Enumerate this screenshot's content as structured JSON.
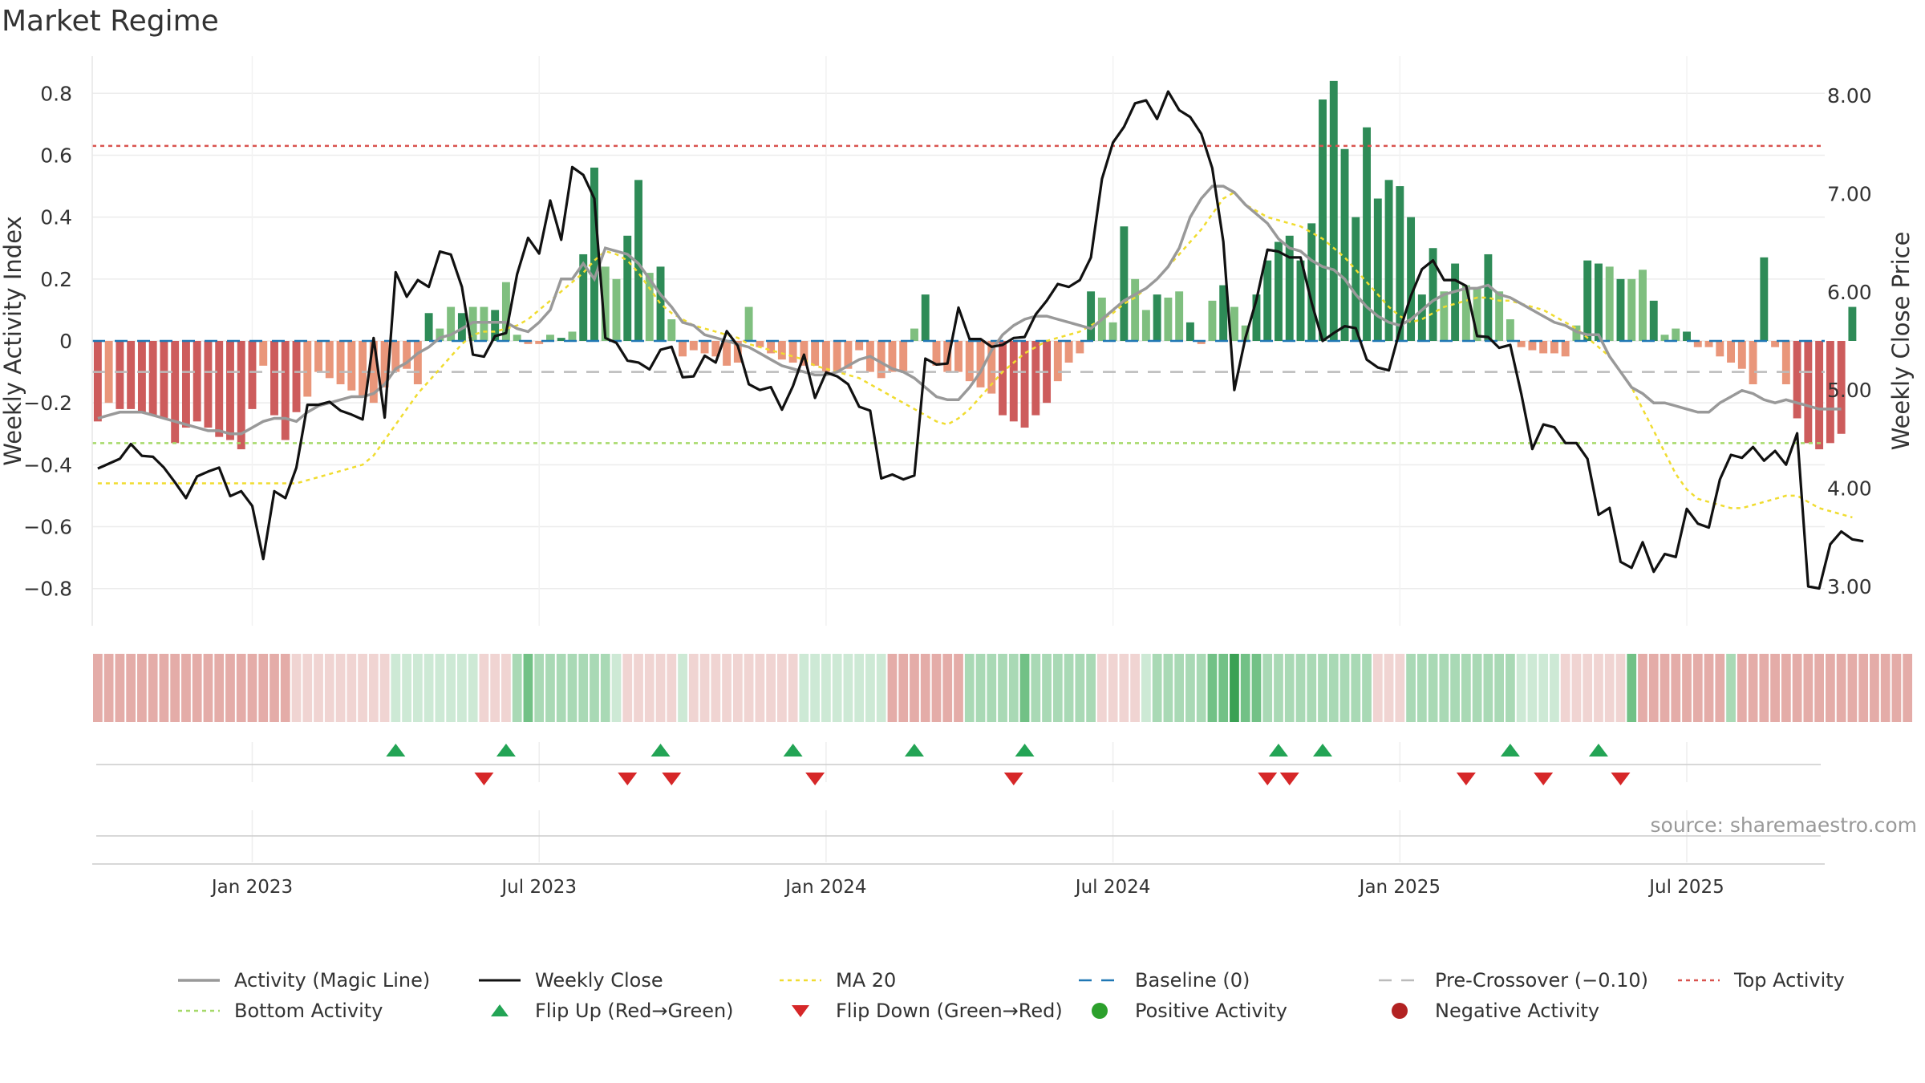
{
  "title": "Market Regime",
  "source": "source: sharemaestro.com",
  "chart_data": {
    "type": "bar",
    "y_left_label": "Weekly Activity Index",
    "y_right_label": "Weekly Close Price",
    "y_left_range": [
      -0.92,
      0.92
    ],
    "y_right_range": [
      2.6,
      8.4
    ],
    "y_left_ticks": [
      "0.8",
      "0.6",
      "0.4",
      "0.2",
      "0",
      "−0.2",
      "−0.4",
      "−0.6",
      "−0.8"
    ],
    "y_left_tick_values": [
      0.8,
      0.6,
      0.4,
      0.2,
      0,
      -0.2,
      -0.4,
      -0.6,
      -0.8
    ],
    "y_right_ticks": [
      "8.00",
      "7.00",
      "6.00",
      "5.00",
      "4.00",
      "3.00"
    ],
    "y_right_tick_values": [
      8,
      7,
      6,
      5,
      4,
      3
    ],
    "x_ticks": [
      "Jan 2023",
      "Jul 2023",
      "Jan 2024",
      "Jul 2024",
      "Jan 2025",
      "Jul 2025"
    ],
    "x_tick_weeks": [
      14,
      40,
      66,
      92,
      118,
      144
    ],
    "weeks": 157,
    "top_activity": 0.63,
    "bottom_activity": -0.33,
    "baseline": 0,
    "pre_crossover": -0.1,
    "activity": [
      -0.26,
      -0.2,
      -0.22,
      -0.22,
      -0.23,
      -0.24,
      -0.25,
      -0.33,
      -0.28,
      -0.26,
      -0.28,
      -0.31,
      -0.32,
      -0.35,
      -0.22,
      -0.08,
      -0.24,
      -0.32,
      -0.23,
      -0.18,
      -0.1,
      -0.12,
      -0.14,
      -0.16,
      -0.18,
      -0.2,
      -0.15,
      -0.1,
      -0.09,
      -0.14,
      0.09,
      0.04,
      0.11,
      0.09,
      0.11,
      0.11,
      0.1,
      0.19,
      0.02,
      -0.01,
      -0.01,
      0.02,
      0.01,
      0.03,
      0.28,
      0.56,
      0.24,
      0.2,
      0.34,
      0.52,
      0.22,
      0.24,
      0.07,
      -0.05,
      -0.03,
      -0.04,
      -0.05,
      -0.08,
      -0.07,
      0.11,
      -0.02,
      -0.04,
      -0.06,
      -0.07,
      -0.08,
      -0.08,
      -0.1,
      -0.1,
      -0.09,
      -0.03,
      -0.1,
      -0.12,
      -0.1,
      -0.1,
      0.04,
      0.15,
      -0.08,
      -0.1,
      -0.1,
      -0.13,
      -0.15,
      -0.17,
      -0.24,
      -0.26,
      -0.28,
      -0.24,
      -0.2,
      -0.13,
      -0.07,
      -0.04,
      0.16,
      0.14,
      0.06,
      0.37,
      0.2,
      0.1,
      0.15,
      0.14,
      0.16,
      0.06,
      -0.01,
      0.13,
      0.18,
      0.11,
      0.05,
      0.15,
      0.26,
      0.32,
      0.34,
      0.26,
      0.38,
      0.78,
      0.84,
      0.62,
      0.4,
      0.69,
      0.46,
      0.52,
      0.5,
      0.4,
      0.15,
      0.3,
      0.16,
      0.25,
      0.18,
      0.17,
      0.28,
      0.16,
      0.07,
      -0.02,
      -0.03,
      -0.04,
      -0.04,
      -0.05,
      0.05,
      0.26,
      0.25,
      0.24,
      0.2,
      0.2,
      0.23,
      0.13,
      0.02,
      0.04,
      0.03,
      -0.02,
      -0.02,
      -0.05,
      -0.07,
      -0.09,
      -0.14,
      0.27,
      -0.02,
      -0.14,
      -0.25,
      -0.33,
      -0.35,
      -0.33,
      -0.3,
      0.11
    ],
    "magic_line": [
      -0.25,
      -0.24,
      -0.23,
      -0.23,
      -0.23,
      -0.24,
      -0.25,
      -0.26,
      -0.27,
      -0.28,
      -0.29,
      -0.29,
      -0.3,
      -0.3,
      -0.28,
      -0.26,
      -0.25,
      -0.25,
      -0.26,
      -0.23,
      -0.21,
      -0.2,
      -0.19,
      -0.18,
      -0.18,
      -0.17,
      -0.14,
      -0.09,
      -0.07,
      -0.04,
      -0.02,
      0.01,
      0.02,
      0.04,
      0.06,
      0.06,
      0.06,
      0.06,
      0.04,
      0.03,
      0.06,
      0.1,
      0.2,
      0.2,
      0.25,
      0.2,
      0.3,
      0.29,
      0.28,
      0.25,
      0.2,
      0.15,
      0.11,
      0.06,
      0.05,
      0.02,
      0.01,
      0,
      -0.01,
      -0.02,
      -0.04,
      -0.06,
      -0.08,
      -0.09,
      -0.1,
      -0.11,
      -0.11,
      -0.1,
      -0.08,
      -0.06,
      -0.05,
      -0.07,
      -0.09,
      -0.1,
      -0.12,
      -0.15,
      -0.18,
      -0.19,
      -0.19,
      -0.15,
      -0.1,
      -0.03,
      0.02,
      0.05,
      0.07,
      0.08,
      0.08,
      0.07,
      0.06,
      0.05,
      0.04,
      0.07,
      0.1,
      0.13,
      0.15,
      0.17,
      0.2,
      0.24,
      0.3,
      0.4,
      0.46,
      0.5,
      0.5,
      0.48,
      0.44,
      0.41,
      0.38,
      0.33,
      0.3,
      0.29,
      0.26,
      0.24,
      0.23,
      0.2,
      0.15,
      0.11,
      0.08,
      0.06,
      0.05,
      0.07,
      0.1,
      0.13,
      0.15,
      0.16,
      0.17,
      0.17,
      0.18,
      0.15,
      0.14,
      0.12,
      0.1,
      0.08,
      0.06,
      0.05,
      0.03,
      0.02,
      0.02,
      -0.05,
      -0.1,
      -0.15,
      -0.17,
      -0.2,
      -0.2,
      -0.21,
      -0.22,
      -0.23,
      -0.23,
      -0.2,
      -0.18,
      -0.16,
      -0.17,
      -0.19,
      -0.2,
      -0.19,
      -0.2,
      -0.21,
      -0.22,
      -0.22,
      -0.22
    ],
    "weekly_close": [
      4.2,
      4.25,
      4.3,
      4.45,
      4.33,
      4.32,
      4.21,
      4.06,
      3.9,
      4.12,
      4.17,
      4.21,
      3.92,
      3.97,
      3.82,
      3.28,
      3.97,
      3.9,
      4.21,
      4.85,
      4.85,
      4.88,
      4.79,
      4.75,
      4.7,
      5.53,
      4.72,
      6.2,
      5.95,
      6.12,
      6.05,
      6.41,
      6.38,
      6.05,
      5.36,
      5.34,
      5.55,
      5.58,
      6.18,
      6.55,
      6.39,
      6.93,
      6.53,
      7.27,
      7.19,
      6.95,
      5.53,
      5.48,
      5.3,
      5.28,
      5.21,
      5.41,
      5.44,
      5.13,
      5.14,
      5.35,
      5.28,
      5.6,
      5.45,
      5.06,
      5.0,
      5.03,
      4.8,
      5.04,
      5.36,
      4.92,
      5.18,
      5.14,
      5.06,
      4.83,
      4.79,
      4.1,
      4.14,
      4.09,
      4.13,
      5.32,
      5.26,
      5.27,
      5.84,
      5.52,
      5.52,
      5.44,
      5.46,
      5.53,
      5.54,
      5.77,
      5.91,
      6.08,
      6.05,
      6.12,
      6.35,
      7.15,
      7.52,
      7.68,
      7.92,
      7.95,
      7.76,
      8.04,
      7.85,
      7.78,
      7.61,
      7.26,
      6.51,
      5.0,
      5.53,
      5.92,
      6.43,
      6.41,
      6.35,
      6.35,
      5.89,
      5.5,
      5.58,
      5.65,
      5.63,
      5.31,
      5.23,
      5.2,
      5.61,
      5.96,
      6.23,
      6.32,
      6.12,
      6.12,
      6.06,
      5.55,
      5.54,
      5.43,
      5.46,
      4.96,
      4.4,
      4.65,
      4.62,
      4.46,
      4.46,
      4.3,
      3.73,
      3.8,
      3.25,
      3.19,
      3.45,
      3.15,
      3.33,
      3.3,
      3.79,
      3.64,
      3.6,
      4.09,
      4.34,
      4.31,
      4.42,
      4.28,
      4.38,
      4.24,
      4.56,
      3.0,
      2.98,
      3.43,
      3.56,
      3.48,
      3.46
    ],
    "ma20": [
      -0.46,
      -0.46,
      -0.46,
      -0.46,
      -0.46,
      -0.46,
      -0.46,
      -0.46,
      -0.46,
      -0.46,
      -0.46,
      -0.46,
      -0.46,
      -0.46,
      -0.46,
      -0.46,
      -0.46,
      -0.46,
      -0.46,
      -0.45,
      -0.44,
      -0.43,
      -0.42,
      -0.41,
      -0.4,
      -0.37,
      -0.32,
      -0.27,
      -0.22,
      -0.17,
      -0.13,
      -0.09,
      -0.05,
      -0.01,
      0.02,
      0.03,
      0.03,
      0.04,
      0.05,
      0.07,
      0.1,
      0.13,
      0.16,
      0.19,
      0.22,
      0.26,
      0.29,
      0.28,
      0.26,
      0.22,
      0.17,
      0.12,
      0.09,
      0.07,
      0.05,
      0.04,
      0.03,
      0.02,
      0.01,
      -0.01,
      -0.02,
      -0.03,
      -0.04,
      -0.05,
      -0.06,
      -0.08,
      -0.09,
      -0.1,
      -0.11,
      -0.12,
      -0.14,
      -0.16,
      -0.18,
      -0.2,
      -0.22,
      -0.24,
      -0.26,
      -0.27,
      -0.25,
      -0.22,
      -0.18,
      -0.14,
      -0.1,
      -0.07,
      -0.04,
      -0.02,
      0,
      0.01,
      0.02,
      0.03,
      0.05,
      0.07,
      0.09,
      0.12,
      0.14,
      0.17,
      0.2,
      0.24,
      0.28,
      0.32,
      0.36,
      0.41,
      0.46,
      0.48,
      0.44,
      0.42,
      0.4,
      0.39,
      0.38,
      0.37,
      0.35,
      0.33,
      0.3,
      0.27,
      0.23,
      0.19,
      0.15,
      0.11,
      0.08,
      0.06,
      0.07,
      0.09,
      0.11,
      0.12,
      0.13,
      0.14,
      0.14,
      0.13,
      0.13,
      0.12,
      0.11,
      0.1,
      0.08,
      0.06,
      0.04,
      0.01,
      -0.02,
      -0.05,
      -0.1,
      -0.15,
      -0.22,
      -0.29,
      -0.36,
      -0.43,
      -0.48,
      -0.51,
      -0.52,
      -0.53,
      -0.54,
      -0.54,
      -0.53,
      -0.52,
      -0.51,
      -0.5,
      -0.5,
      -0.52,
      -0.54,
      -0.55,
      -0.56,
      -0.57
    ],
    "regime_strip": [
      -2,
      -2,
      -2,
      -2,
      -2,
      -2,
      -2,
      -2,
      -2,
      -2,
      -2,
      -2,
      -2,
      -2,
      -2,
      -2,
      -2,
      -2,
      -1,
      -1,
      -1,
      -1,
      -1,
      -1,
      -1,
      -1,
      -1,
      1,
      1,
      1,
      1,
      1,
      1,
      1,
      1,
      -1,
      -1,
      -1,
      2,
      3,
      2,
      2,
      2,
      2,
      2,
      2,
      2,
      1,
      -1,
      -1,
      -1,
      -1,
      -1,
      1,
      -1,
      -1,
      -1,
      -1,
      -1,
      -1,
      -1,
      -1,
      -1,
      -1,
      1,
      1,
      1,
      1,
      1,
      1,
      1,
      1,
      -2,
      -2,
      -2,
      -2,
      -2,
      -2,
      -2,
      2,
      2,
      2,
      2,
      2,
      3,
      2,
      2,
      2,
      2,
      2,
      2,
      -1,
      -1,
      -1,
      -1,
      1,
      2,
      2,
      2,
      2,
      2,
      3,
      3,
      4,
      3,
      3,
      2,
      2,
      2,
      2,
      2,
      2,
      2,
      2,
      2,
      2,
      -1,
      -1,
      -1,
      2,
      2,
      2,
      2,
      2,
      2,
      2,
      2,
      2,
      2,
      1,
      1,
      1,
      1,
      -1,
      -1,
      -1,
      -1,
      -1,
      -1,
      3,
      -2,
      -2,
      -2,
      -2,
      -2,
      -2,
      -2,
      -2,
      2,
      -2,
      -2,
      -2,
      -2,
      -2,
      -2,
      -2,
      -2,
      -2,
      -2,
      -2,
      -2,
      -2,
      -2,
      -2,
      -2
    ],
    "flip_up_weeks": [
      27,
      37,
      51,
      63,
      74,
      84,
      107,
      111,
      128,
      136
    ],
    "flip_down_weeks": [
      35,
      48,
      52,
      65,
      83,
      106,
      108,
      124,
      131,
      138
    ],
    "legend": [
      {
        "key": "magic",
        "label": "Activity (Magic Line)"
      },
      {
        "key": "close",
        "label": "Weekly Close"
      },
      {
        "key": "ma20",
        "label": "MA 20"
      },
      {
        "key": "baseline",
        "label": "Baseline (0)"
      },
      {
        "key": "precross",
        "label": "Pre-Crossover (−0.10)"
      },
      {
        "key": "top",
        "label": "Top Activity"
      },
      {
        "key": "bottom",
        "label": "Bottom Activity"
      },
      {
        "key": "flipup",
        "label": "Flip Up (Red→Green)"
      },
      {
        "key": "flipdown",
        "label": "Flip Down (Green→Red)"
      },
      {
        "key": "pos",
        "label": "Positive Activity"
      },
      {
        "key": "neg",
        "label": "Negative Activity"
      }
    ],
    "colors": {
      "pos_strong": "#2e8b57",
      "pos_light": "#7fbf7f",
      "neg_strong": "#cd5c5c",
      "neg_light": "#e9967a",
      "magic_line": "#999999",
      "close_line": "#111111",
      "ma20": "#f0dc30",
      "baseline": "#1f77b4",
      "pre_crossover": "#bbbbbb",
      "top_line": "#d9534f",
      "bottom_line": "#a6d96a",
      "flip_up": "#23a455",
      "flip_down": "#d62728",
      "pos_dot": "#2ca02c",
      "neg_dot": "#b22222"
    }
  }
}
